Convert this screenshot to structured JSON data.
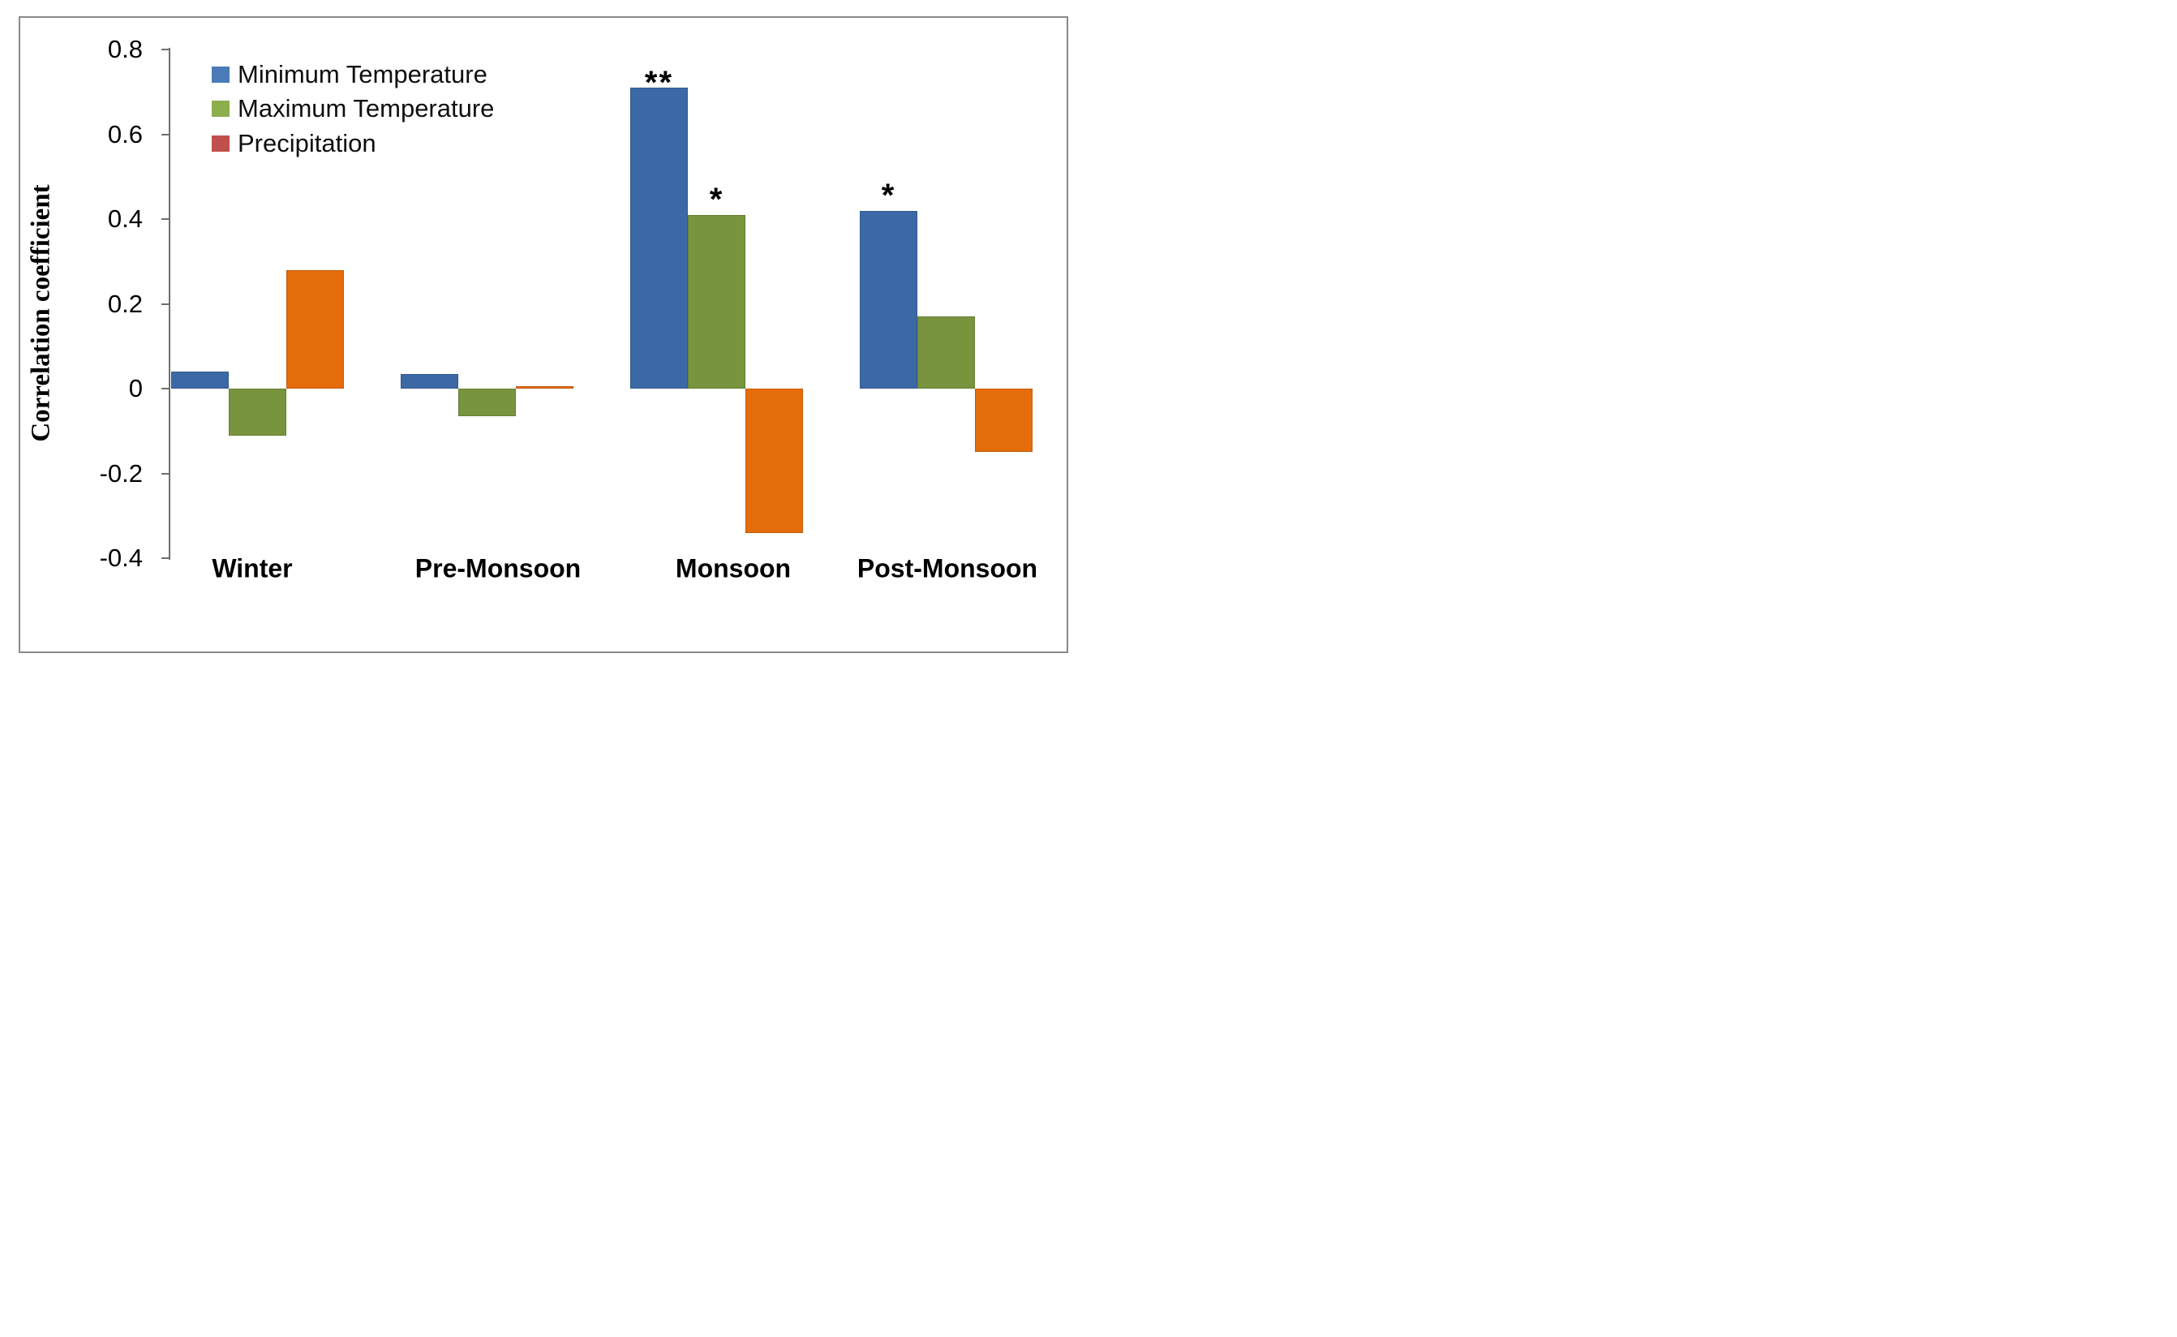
{
  "figure": {
    "background": "#ffffff",
    "frame_color": "#8a8a8a",
    "axis_color": "#6e6e6e",
    "text_color": "#000000"
  },
  "axis": {
    "y_title": "Correlation coefficient",
    "y_ticks": [
      {
        "label": "0.8",
        "value": 0.8
      },
      {
        "label": "0.6",
        "value": 0.6
      },
      {
        "label": "0.4",
        "value": 0.4
      },
      {
        "label": "0.2",
        "value": 0.2
      },
      {
        "label": "0",
        "value": 0
      },
      {
        "label": "-0.2",
        "value": -0.2
      },
      {
        "label": "-0.4",
        "value": -0.4
      }
    ]
  },
  "legend": {
    "items": [
      {
        "label": "Minimum Temperature",
        "swatch_color": "#4a7bb7"
      },
      {
        "label": "Maximum Temperature",
        "swatch_color": "#8cae4c"
      },
      {
        "label": "Precipitation",
        "swatch_color": "#c0504d"
      }
    ]
  },
  "chart_data": {
    "type": "bar",
    "title": "",
    "categories": [
      "Winter",
      "Pre-Monsoon",
      "Monsoon",
      "Post-Monsoon"
    ],
    "series": [
      {
        "name": "Minimum Temperature",
        "color": "#3c69a5",
        "values": [
          0.04,
          0.035,
          0.71,
          0.42
        ],
        "significance": [
          "",
          "",
          "**",
          "*"
        ]
      },
      {
        "name": "Maximum Temperature",
        "color": "#78943d",
        "values": [
          -0.11,
          -0.065,
          0.41,
          0.17
        ],
        "significance": [
          "",
          "",
          "*",
          ""
        ]
      },
      {
        "name": "Precipitation",
        "color": "#e46c0a",
        "values": [
          0.28,
          0.005,
          -0.34,
          -0.15
        ],
        "significance": [
          "",
          "",
          "",
          ""
        ]
      }
    ],
    "ylabel": "Correlation coefficient",
    "ylim": [
      -0.4,
      0.8
    ],
    "ytick_step": 0.2,
    "grid": false,
    "legend_position": "top-left-inside",
    "significance_note_symbols": [
      "**",
      "*"
    ]
  }
}
